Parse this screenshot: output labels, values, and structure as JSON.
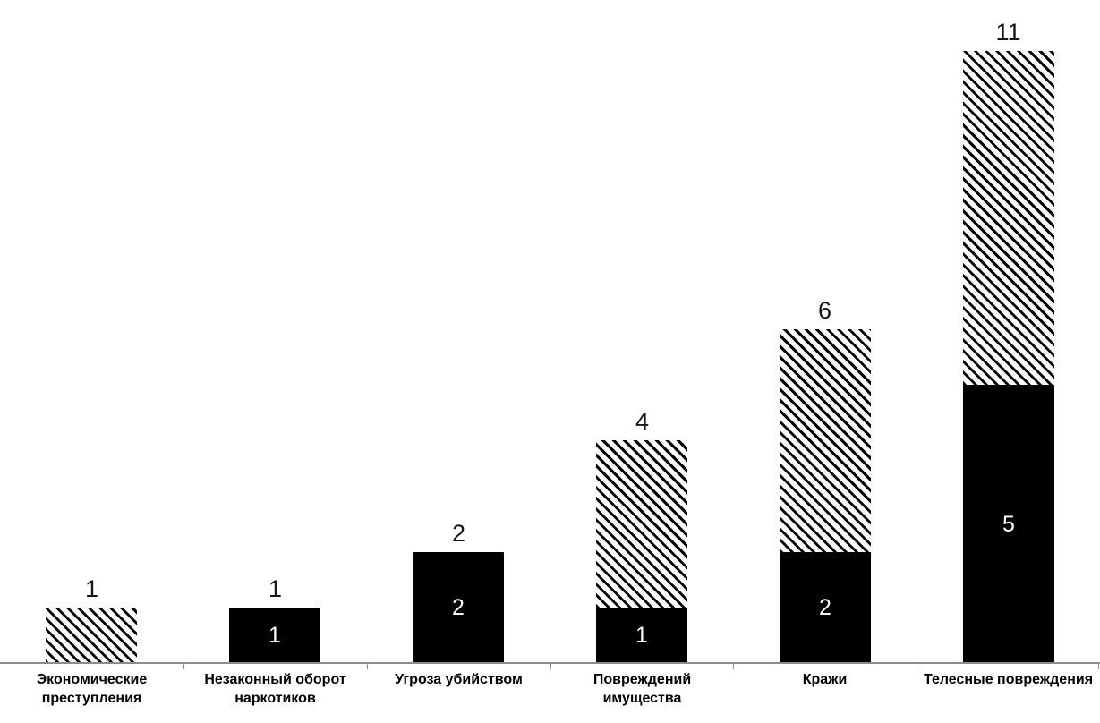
{
  "chart_data": {
    "type": "bar",
    "subtype": "stacked-column",
    "title": "",
    "categories": [
      "Экономические преступления",
      "Незаконный оборот наркотиков",
      "Угроза убийством",
      "Повреждений имущества",
      "Кражи",
      "Телесные повреждения"
    ],
    "series": [
      {
        "name": "solid-black-segment",
        "pattern": "solid",
        "color": "#000000",
        "values": [
          0,
          1,
          2,
          1,
          2,
          5
        ],
        "value_labels": [
          "",
          "1",
          "2",
          "1",
          "2",
          "5"
        ],
        "value_label_color": "#ffffff"
      },
      {
        "name": "hatched-segment",
        "pattern": "diagonal-hatch",
        "color": "#000000",
        "background": "#ffffff",
        "values": [
          1,
          0,
          0,
          3,
          4,
          6
        ],
        "value_labels": [
          "",
          "",
          "",
          "",
          "",
          ""
        ]
      }
    ],
    "totals": [
      1,
      1,
      2,
      4,
      6,
      11
    ],
    "total_labels": [
      "1",
      "1",
      "2",
      "4",
      "6",
      "11"
    ],
    "ylim": [
      0,
      11
    ],
    "value_axis": "hidden",
    "gridlines": false,
    "legend": "none",
    "axis_color": "#8c8c8c",
    "text_color": "#000000",
    "background": "#ffffff"
  }
}
